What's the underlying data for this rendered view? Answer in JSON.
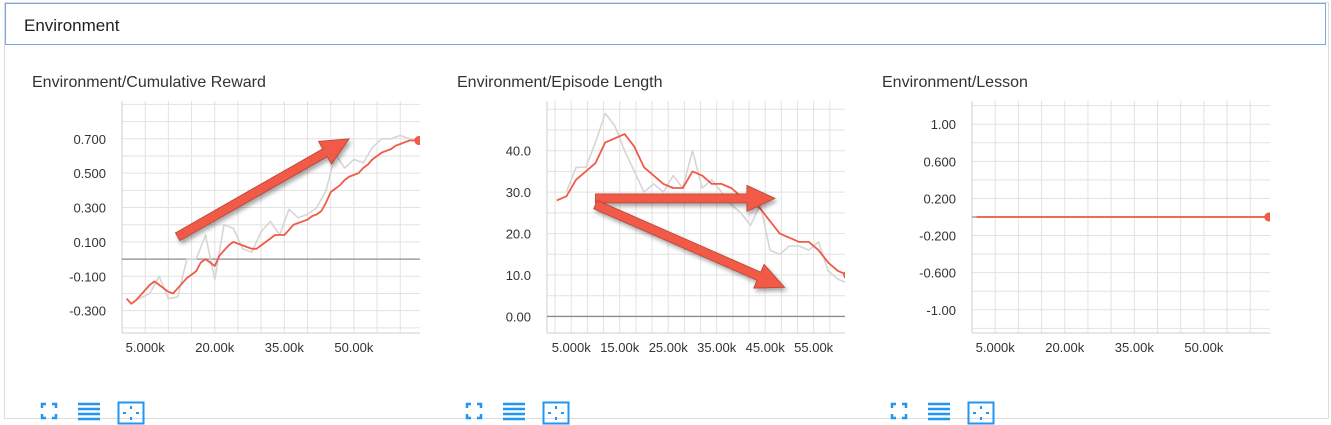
{
  "section": {
    "title": "Environment"
  },
  "colors": {
    "series": "#f05a47",
    "raw": "#d6d6d6",
    "grid": "#e2e2e2",
    "zero_line": "#8c8c8c",
    "arrow": "#f05a47",
    "icon": "#2196f3"
  },
  "toolbar_icons": [
    "fullscreen-icon",
    "list-icon",
    "fit-domain-icon"
  ],
  "chart_data": [
    {
      "type": "line",
      "title": "Environment/Cumulative Reward",
      "x_tick_labels": [
        "5.000k",
        "20.00k",
        "35.00k",
        "50.00k"
      ],
      "x_ticks": [
        5000,
        20000,
        35000,
        50000
      ],
      "xlim": [
        0,
        69000
      ],
      "y_tick_labels": [
        "0.700",
        "0.500",
        "0.300",
        "0.100",
        "-0.100",
        "-0.300"
      ],
      "y_ticks": [
        0.7,
        0.5,
        0.3,
        0.1,
        -0.1,
        -0.3
      ],
      "ylim": [
        -0.43,
        0.92
      ],
      "zero_line": true,
      "grid": true,
      "series": [
        {
          "role": "smoothed",
          "x": [
            1000,
            2000,
            3000,
            4000,
            5000,
            6000,
            7000,
            8000,
            9000,
            10000,
            11000,
            12000,
            13000,
            14000,
            15000,
            16000,
            17000,
            18000,
            19000,
            20000,
            21000,
            22000,
            23000,
            24000,
            25000,
            26000,
            27000,
            28000,
            29000,
            30000,
            31000,
            32000,
            33000,
            34000,
            35000,
            36000,
            37000,
            38000,
            39000,
            40000,
            41000,
            42000,
            43000,
            44000,
            45000,
            46000,
            47000,
            48000,
            49000,
            50000,
            51000,
            52000,
            53000,
            54000,
            55000,
            56000,
            57000,
            58000,
            59000,
            60000,
            61000,
            62000,
            63000,
            64000
          ],
          "y": [
            -0.23,
            -0.26,
            -0.24,
            -0.21,
            -0.18,
            -0.15,
            -0.13,
            -0.15,
            -0.17,
            -0.19,
            -0.2,
            -0.17,
            -0.14,
            -0.11,
            -0.09,
            -0.07,
            -0.02,
            0.0,
            -0.02,
            -0.04,
            0.02,
            0.05,
            0.08,
            0.1,
            0.09,
            0.08,
            0.07,
            0.06,
            0.06,
            0.08,
            0.1,
            0.12,
            0.14,
            0.14,
            0.14,
            0.17,
            0.2,
            0.21,
            0.22,
            0.23,
            0.25,
            0.26,
            0.28,
            0.33,
            0.39,
            0.41,
            0.43,
            0.46,
            0.48,
            0.49,
            0.5,
            0.53,
            0.55,
            0.58,
            0.6,
            0.62,
            0.63,
            0.64,
            0.66,
            0.67,
            0.68,
            0.69,
            0.69,
            0.69
          ]
        },
        {
          "role": "raw",
          "x": [
            3000,
            6000,
            8000,
            10000,
            12000,
            14000,
            16000,
            18000,
            20000,
            22000,
            24000,
            26000,
            28000,
            30000,
            32000,
            34000,
            36000,
            38000,
            40000,
            42000,
            44000,
            46000,
            48000,
            50000,
            52000,
            54000,
            56000,
            58000,
            60000,
            62000,
            64000
          ],
          "y": [
            -0.24,
            -0.2,
            -0.1,
            -0.23,
            -0.22,
            0.0,
            0.0,
            0.14,
            -0.12,
            0.2,
            0.18,
            0.06,
            0.04,
            0.16,
            0.22,
            0.14,
            0.29,
            0.24,
            0.26,
            0.3,
            0.4,
            0.61,
            0.53,
            0.58,
            0.56,
            0.65,
            0.7,
            0.7,
            0.72,
            0.7,
            0.69
          ]
        }
      ],
      "last_point": {
        "x": 64000,
        "y": 0.69
      },
      "annotations": [
        {
          "type": "arrow",
          "from": [
            12000,
            0.13
          ],
          "to": [
            49000,
            0.7
          ]
        }
      ]
    },
    {
      "type": "line",
      "title": "Environment/Episode Length",
      "x_tick_labels": [
        "5.000k",
        "15.00k",
        "25.00k",
        "35.00k",
        "45.00k",
        "55.00k"
      ],
      "x_ticks": [
        5000,
        15000,
        25000,
        35000,
        45000,
        55000
      ],
      "xlim": [
        0,
        66000
      ],
      "y_tick_labels": [
        "40.0",
        "30.0",
        "20.0",
        "10.0",
        "0.00"
      ],
      "y_ticks": [
        40,
        30,
        20,
        10,
        0
      ],
      "ylim": [
        -4,
        52
      ],
      "zero_line": true,
      "grid": true,
      "series": [
        {
          "role": "smoothed",
          "x": [
            2000,
            4000,
            6000,
            8000,
            10000,
            12000,
            14000,
            16000,
            18000,
            20000,
            22000,
            24000,
            26000,
            28000,
            30000,
            32000,
            34000,
            36000,
            38000,
            40000,
            42000,
            44000,
            46000,
            48000,
            50000,
            52000,
            54000,
            56000,
            58000,
            60000,
            62000
          ],
          "y": [
            28,
            29,
            33,
            35,
            37,
            42,
            43,
            44,
            41,
            36,
            34,
            32,
            31,
            31,
            35,
            34,
            32,
            32,
            31,
            29,
            28,
            26,
            23,
            20,
            19,
            18,
            18,
            16,
            13,
            11,
            10
          ]
        },
        {
          "role": "raw",
          "x": [
            4000,
            6000,
            8000,
            10000,
            12000,
            14000,
            16000,
            18000,
            20000,
            22000,
            24000,
            26000,
            28000,
            30000,
            32000,
            34000,
            36000,
            38000,
            40000,
            42000,
            44000,
            46000,
            48000,
            50000,
            52000,
            54000,
            56000,
            58000,
            60000,
            62000
          ],
          "y": [
            30,
            36,
            36,
            42,
            49,
            46,
            40,
            35,
            30,
            32,
            30,
            34,
            31,
            40,
            31,
            33,
            30,
            27,
            25,
            22,
            27,
            16,
            15,
            17,
            17,
            16,
            18,
            11,
            9,
            8
          ]
        }
      ],
      "last_point": {
        "x": 62000,
        "y": 10
      },
      "annotations": [
        {
          "type": "arrow",
          "from": [
            10000,
            28.5
          ],
          "to": [
            47000,
            28.5
          ]
        },
        {
          "type": "arrow",
          "from": [
            10000,
            27
          ],
          "to": [
            49000,
            7
          ]
        }
      ]
    },
    {
      "type": "line",
      "title": "Environment/Lesson",
      "x_tick_labels": [
        "5.000k",
        "20.00k",
        "35.00k",
        "50.00k"
      ],
      "x_ticks": [
        5000,
        20000,
        35000,
        50000
      ],
      "xlim": [
        0,
        69000
      ],
      "y_tick_labels": [
        "1.00",
        "0.600",
        "0.200",
        "-0.200",
        "-0.600",
        "-1.00"
      ],
      "y_ticks": [
        1.0,
        0.6,
        0.2,
        -0.2,
        -0.6,
        -1.0
      ],
      "ylim": [
        -1.25,
        1.25
      ],
      "zero_line": true,
      "grid": true,
      "series": [
        {
          "role": "smoothed",
          "x": [
            1000,
            64000
          ],
          "y": [
            0,
            0
          ]
        }
      ],
      "last_point": {
        "x": 64000,
        "y": 0
      },
      "annotations": []
    }
  ]
}
